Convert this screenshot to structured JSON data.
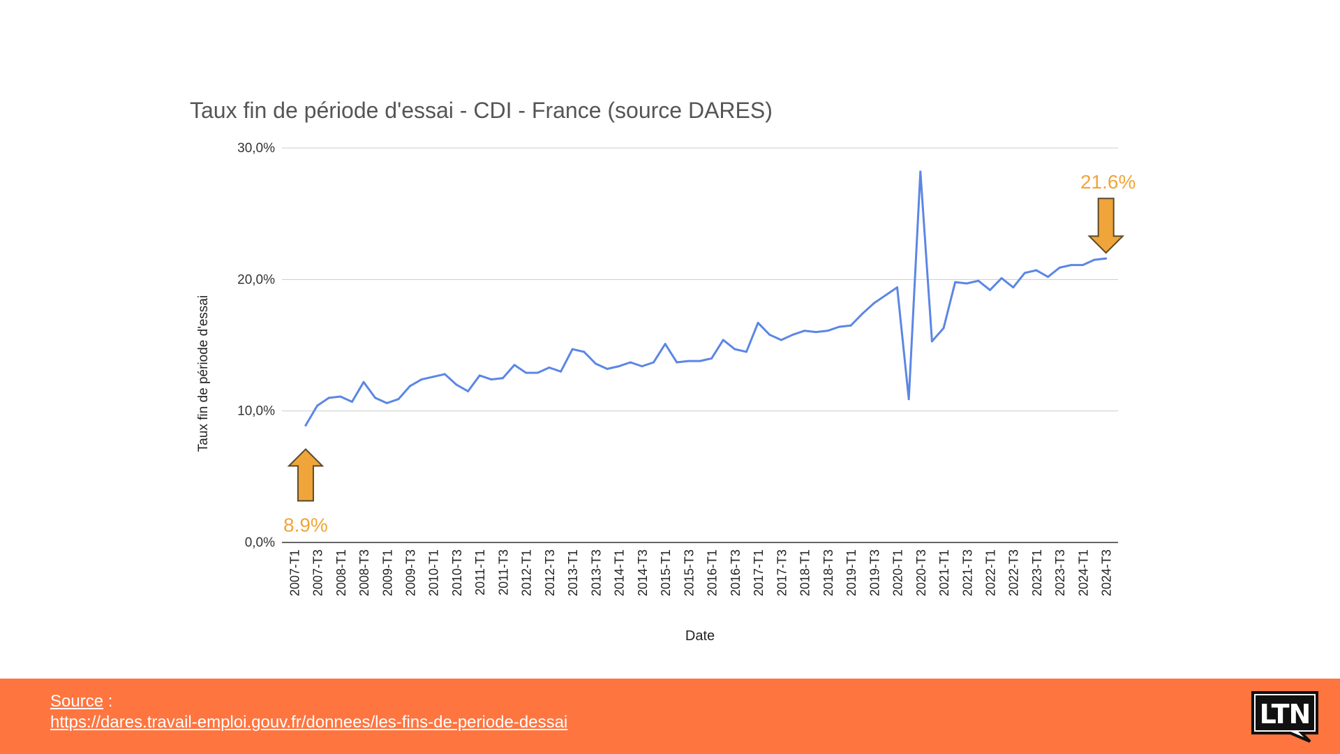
{
  "chart_data": {
    "type": "line",
    "title": "Taux fin de période d'essai - CDI - France (source DARES)",
    "xlabel": "Date",
    "ylabel": "Taux fin de période d'essai",
    "ylim": [
      0,
      30
    ],
    "yticks": [
      "0,0%",
      "10,0%",
      "20,0%",
      "30,0%"
    ],
    "grid": true,
    "x_tick_labels": [
      "2007-T1",
      "2007-T3",
      "2008-T1",
      "2008-T3",
      "2009-T1",
      "2009-T3",
      "2010-T1",
      "2010-T3",
      "2011-T1",
      "2011-T3",
      "2012-T1",
      "2012-T3",
      "2013-T1",
      "2013-T3",
      "2014-T1",
      "2014-T3",
      "2015-T1",
      "2015-T3",
      "2016-T1",
      "2016-T3",
      "2017-T1",
      "2017-T3",
      "2018-T1",
      "2018-T3",
      "2019-T1",
      "2019-T3",
      "2020-T1",
      "2020-T3",
      "2021-T1",
      "2021-T3",
      "2022-T1",
      "2022-T3",
      "2023-T1",
      "2023-T3",
      "2024-T1",
      "2024-T3"
    ],
    "x": [
      "2007-T2",
      "2007-T3",
      "2007-T4",
      "2008-T1",
      "2008-T2",
      "2008-T3",
      "2008-T4",
      "2009-T1",
      "2009-T2",
      "2009-T3",
      "2009-T4",
      "2010-T1",
      "2010-T2",
      "2010-T3",
      "2010-T4",
      "2011-T1",
      "2011-T2",
      "2011-T3",
      "2011-T4",
      "2012-T1",
      "2012-T2",
      "2012-T3",
      "2012-T4",
      "2013-T1",
      "2013-T2",
      "2013-T3",
      "2013-T4",
      "2014-T1",
      "2014-T2",
      "2014-T3",
      "2014-T4",
      "2015-T1",
      "2015-T2",
      "2015-T3",
      "2015-T4",
      "2016-T1",
      "2016-T2",
      "2016-T3",
      "2016-T4",
      "2017-T1",
      "2017-T2",
      "2017-T3",
      "2017-T4",
      "2018-T1",
      "2018-T2",
      "2018-T3",
      "2018-T4",
      "2019-T1",
      "2019-T2",
      "2019-T3",
      "2019-T4",
      "2020-T1",
      "2020-T2",
      "2020-T3",
      "2020-T4",
      "2021-T1",
      "2021-T2",
      "2021-T3",
      "2021-T4",
      "2022-T1",
      "2022-T2",
      "2022-T3",
      "2022-T4",
      "2023-T1",
      "2023-T2",
      "2023-T3",
      "2023-T4",
      "2024-T1",
      "2024-T2",
      "2024-T3"
    ],
    "values": [
      8.9,
      10.4,
      11.0,
      11.1,
      10.7,
      12.2,
      11.0,
      10.6,
      10.9,
      11.9,
      12.4,
      12.6,
      12.8,
      12.0,
      11.5,
      12.7,
      12.4,
      12.5,
      13.5,
      12.9,
      12.9,
      13.3,
      13.0,
      14.7,
      14.5,
      13.6,
      13.2,
      13.4,
      13.7,
      13.4,
      13.7,
      15.1,
      13.7,
      13.8,
      13.8,
      14.0,
      15.4,
      14.7,
      14.5,
      16.7,
      15.8,
      15.4,
      15.8,
      16.1,
      16.0,
      16.1,
      16.4,
      16.5,
      17.4,
      18.2,
      18.8,
      19.4,
      10.9,
      28.2,
      15.3,
      16.3,
      19.8,
      19.7,
      19.9,
      19.2,
      20.1,
      19.4,
      20.5,
      20.7,
      20.2,
      20.9,
      21.1,
      21.1,
      21.5,
      21.6
    ],
    "line_color": "#5b86e5",
    "annotations": [
      {
        "text": "8.9%",
        "x": "2007-T2",
        "value": 8.9,
        "arrow": "up",
        "color": "#f0a53a"
      },
      {
        "text": "21.6%",
        "x": "2024-T3",
        "value": 21.6,
        "arrow": "down",
        "color": "#f0a53a"
      }
    ]
  },
  "footer": {
    "source_label": "Source",
    "source_separator": " :",
    "source_url": "https://dares.travail-emploi.gouv.fr/donnees/les-fins-de-periode-dessai",
    "background_color": "#ff7540",
    "logo_text": "LTN"
  }
}
